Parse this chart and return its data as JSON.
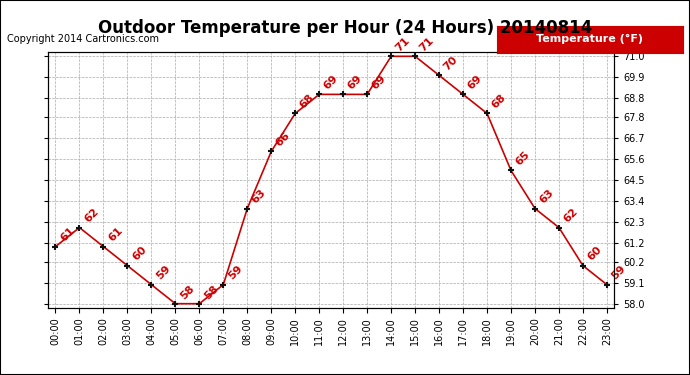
{
  "title": "Outdoor Temperature per Hour (24 Hours) 20140814",
  "copyright_text": "Copyright 2014 Cartronics.com",
  "legend_label": "Temperature (°F)",
  "hours": [
    "00:00",
    "01:00",
    "02:00",
    "03:00",
    "04:00",
    "05:00",
    "06:00",
    "07:00",
    "08:00",
    "09:00",
    "10:00",
    "11:00",
    "12:00",
    "13:00",
    "14:00",
    "15:00",
    "16:00",
    "17:00",
    "18:00",
    "19:00",
    "20:00",
    "21:00",
    "22:00",
    "23:00"
  ],
  "temperatures": [
    61,
    62,
    61,
    60,
    59,
    58,
    58,
    59,
    63,
    66,
    68,
    69,
    69,
    69,
    71,
    71,
    70,
    69,
    68,
    65,
    63,
    62,
    60,
    59
  ],
  "ylim_min": 57.8,
  "ylim_max": 71.2,
  "ytick_values": [
    58.0,
    59.1,
    60.2,
    61.2,
    62.3,
    63.4,
    64.5,
    65.6,
    66.7,
    67.8,
    68.8,
    69.9,
    71.0
  ],
  "ytick_labels": [
    "58.0",
    "59.1",
    "60.2",
    "61.2",
    "62.3",
    "63.4",
    "64.5",
    "65.6",
    "66.7",
    "67.8",
    "68.8",
    "69.9",
    "71.0"
  ],
  "line_color": "#cc0000",
  "marker_color": "#111111",
  "label_color": "#cc0000",
  "bg_color": "#ffffff",
  "grid_color": "#aaaaaa",
  "border_color": "#000000",
  "title_fontsize": 12,
  "copyright_fontsize": 7,
  "label_fontsize": 8,
  "tick_fontsize": 7,
  "legend_fontsize": 8
}
